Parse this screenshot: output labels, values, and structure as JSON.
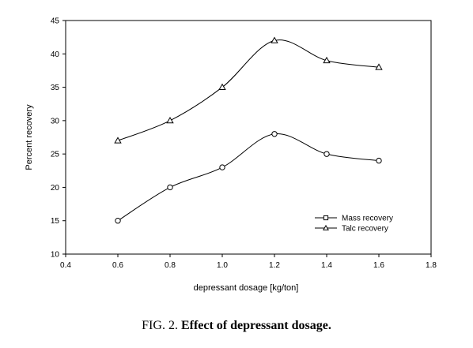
{
  "chart_data": {
    "type": "line",
    "xlabel": "depressant dosage [kg/ton]",
    "ylabel": "Percent recovery",
    "xlim": [
      0.4,
      1.8
    ],
    "ylim": [
      10,
      45
    ],
    "xticks": [
      "0.4",
      "0.6",
      "0.8",
      "1.0",
      "1.2",
      "1.4",
      "1.6",
      "1.8"
    ],
    "yticks": [
      "10",
      "15",
      "20",
      "25",
      "30",
      "35",
      "40",
      "45"
    ],
    "grid": false,
    "legend_position": "bottom-right",
    "series": [
      {
        "name": "Mass recovery",
        "marker": "circle",
        "x": [
          0.6,
          0.8,
          1.0,
          1.2,
          1.4,
          1.6
        ],
        "values": [
          15,
          20,
          23,
          28,
          25,
          24
        ]
      },
      {
        "name": "Talc recovery",
        "marker": "triangle",
        "x": [
          0.6,
          0.8,
          1.0,
          1.2,
          1.4,
          1.6
        ],
        "values": [
          27,
          30,
          35,
          42,
          39,
          38
        ]
      }
    ],
    "legend": [
      {
        "label": "Mass recovery",
        "marker": "square"
      },
      {
        "label": "Talc recovery",
        "marker": "triangle"
      }
    ]
  },
  "caption": {
    "prefix": "FIG. 2. ",
    "title": "Effect of depressant dosage."
  }
}
